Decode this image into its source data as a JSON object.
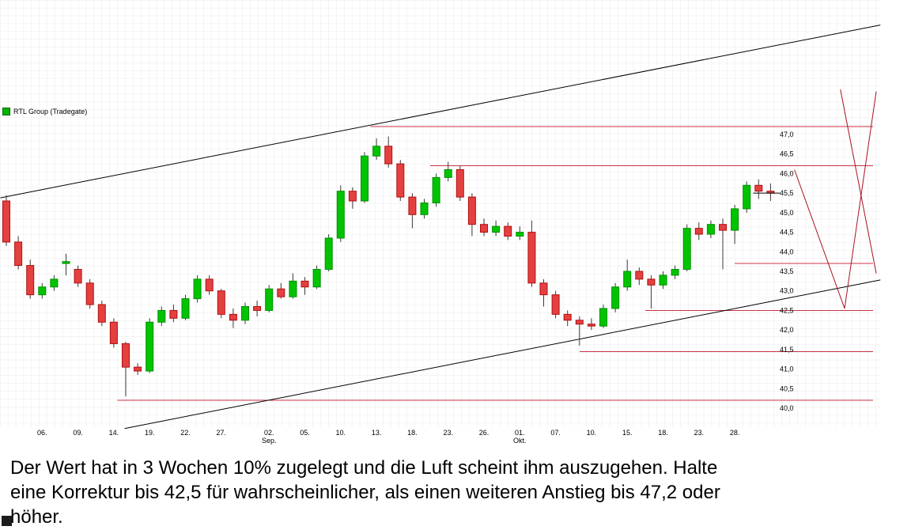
{
  "legend": {
    "label": "RTL Group (Tradegate)",
    "marker_color": "#00b400"
  },
  "commentary": {
    "lines": [
      "Der Wert hat in 3 Wochen 10% zugelegt und die Luft scheint ihm auszugehen. Halte",
      "eine Korrektur bis 42,5 für wahrscheinlicher, als einen weiteren Anstieg bis 47,2 oder",
      "höher."
    ],
    "text": "Der Wert hat in 3 Wochen 10% zugelegt und die Luft scheint ihm auszugehen. Halte eine Korrektur bis 42,5 für wahrscheinlicher, als einen weiteren Anstieg bis 47,2 oder höher."
  },
  "chart_data": {
    "type": "candlestick",
    "instrument": "RTL Group (Tradegate)",
    "title": "",
    "xlabel": "",
    "ylabel": "",
    "ylim": [
      40.0,
      47.0
    ],
    "grid": true,
    "y_axis_side": "right",
    "y_ticks": [
      "47,0",
      "46,5",
      "46,0",
      "45,5",
      "45,0",
      "44,5",
      "44,0",
      "43,5",
      "43,0",
      "42,5",
      "42,0",
      "41,5",
      "41,0",
      "40,5",
      "40,0"
    ],
    "x_ticks": [
      {
        "label": "06.",
        "index": 3
      },
      {
        "label": "09.",
        "index": 6
      },
      {
        "label": "14.",
        "index": 9
      },
      {
        "label": "19.",
        "index": 12
      },
      {
        "label": "22.",
        "index": 15
      },
      {
        "label": "27.",
        "index": 18
      },
      {
        "label": "02.",
        "index": 22,
        "month": "Sep."
      },
      {
        "label": "05.",
        "index": 25
      },
      {
        "label": "10.",
        "index": 28
      },
      {
        "label": "13.",
        "index": 31
      },
      {
        "label": "18.",
        "index": 34
      },
      {
        "label": "23.",
        "index": 37
      },
      {
        "label": "26.",
        "index": 40
      },
      {
        "label": "01.",
        "index": 43,
        "month": "Okt."
      },
      {
        "label": "07.",
        "index": 46
      },
      {
        "label": "10.",
        "index": 49
      },
      {
        "label": "15.",
        "index": 52
      },
      {
        "label": "18.",
        "index": 55
      },
      {
        "label": "23.",
        "index": 58
      },
      {
        "label": "28.",
        "index": 61
      }
    ],
    "candles": [
      {
        "d": "01.08.",
        "o": 45.3,
        "h": 45.45,
        "l": 44.15,
        "c": 44.25
      },
      {
        "d": "02.08.",
        "o": 44.25,
        "h": 44.4,
        "l": 43.55,
        "c": 43.65
      },
      {
        "d": "05.08.",
        "o": 43.65,
        "h": 43.8,
        "l": 42.8,
        "c": 42.9
      },
      {
        "d": "06.08.",
        "o": 42.9,
        "h": 43.2,
        "l": 42.8,
        "c": 43.1
      },
      {
        "d": "07.08.",
        "o": 43.1,
        "h": 43.4,
        "l": 43.0,
        "c": 43.3
      },
      {
        "d": "08.08.",
        "o": 43.7,
        "h": 43.95,
        "l": 43.4,
        "c": 43.75
      },
      {
        "d": "09.08.",
        "o": 43.55,
        "h": 43.65,
        "l": 43.1,
        "c": 43.2
      },
      {
        "d": "12.08.",
        "o": 43.2,
        "h": 43.3,
        "l": 42.55,
        "c": 42.65
      },
      {
        "d": "13.08.",
        "o": 42.65,
        "h": 42.75,
        "l": 42.1,
        "c": 42.2
      },
      {
        "d": "14.08.",
        "o": 42.2,
        "h": 42.3,
        "l": 41.55,
        "c": 41.65
      },
      {
        "d": "15.08.",
        "o": 41.65,
        "h": 41.7,
        "l": 40.3,
        "c": 41.05
      },
      {
        "d": "16.08.",
        "o": 41.05,
        "h": 41.15,
        "l": 40.85,
        "c": 40.95
      },
      {
        "d": "19.08.",
        "o": 40.95,
        "h": 42.3,
        "l": 40.9,
        "c": 42.2
      },
      {
        "d": "20.08.",
        "o": 42.2,
        "h": 42.6,
        "l": 42.1,
        "c": 42.5
      },
      {
        "d": "21.08.",
        "o": 42.5,
        "h": 42.65,
        "l": 42.2,
        "c": 42.3
      },
      {
        "d": "22.08.",
        "o": 42.3,
        "h": 42.9,
        "l": 42.25,
        "c": 42.8
      },
      {
        "d": "23.08.",
        "o": 42.8,
        "h": 43.4,
        "l": 42.7,
        "c": 43.3
      },
      {
        "d": "26.08.",
        "o": 43.3,
        "h": 43.4,
        "l": 42.9,
        "c": 43.0
      },
      {
        "d": "27.08.",
        "o": 43.0,
        "h": 43.05,
        "l": 42.3,
        "c": 42.4
      },
      {
        "d": "28.08.",
        "o": 42.4,
        "h": 42.55,
        "l": 42.05,
        "c": 42.25
      },
      {
        "d": "29.08.",
        "o": 42.25,
        "h": 42.7,
        "l": 42.15,
        "c": 42.6
      },
      {
        "d": "30.08.",
        "o": 42.6,
        "h": 42.75,
        "l": 42.35,
        "c": 42.5
      },
      {
        "d": "02.09.",
        "o": 42.5,
        "h": 43.15,
        "l": 42.45,
        "c": 43.05
      },
      {
        "d": "03.09.",
        "o": 43.05,
        "h": 43.2,
        "l": 42.8,
        "c": 42.85
      },
      {
        "d": "04.09.",
        "o": 42.85,
        "h": 43.45,
        "l": 42.8,
        "c": 43.25
      },
      {
        "d": "05.09.",
        "o": 43.25,
        "h": 43.35,
        "l": 42.9,
        "c": 43.1
      },
      {
        "d": "06.09.",
        "o": 43.1,
        "h": 43.65,
        "l": 43.05,
        "c": 43.55
      },
      {
        "d": "09.09.",
        "o": 43.55,
        "h": 44.45,
        "l": 43.5,
        "c": 44.35
      },
      {
        "d": "10.09.",
        "o": 44.35,
        "h": 45.7,
        "l": 44.25,
        "c": 45.55
      },
      {
        "d": "11.09.",
        "o": 45.55,
        "h": 45.65,
        "l": 45.1,
        "c": 45.3
      },
      {
        "d": "12.09.",
        "o": 45.3,
        "h": 46.55,
        "l": 45.25,
        "c": 46.45
      },
      {
        "d": "13.09.",
        "o": 46.45,
        "h": 46.9,
        "l": 46.35,
        "c": 46.7
      },
      {
        "d": "16.09.",
        "o": 46.7,
        "h": 46.95,
        "l": 46.15,
        "c": 46.25
      },
      {
        "d": "17.09.",
        "o": 46.25,
        "h": 46.35,
        "l": 45.3,
        "c": 45.4
      },
      {
        "d": "18.09.",
        "o": 45.4,
        "h": 45.5,
        "l": 44.6,
        "c": 44.95
      },
      {
        "d": "19.09.",
        "o": 44.95,
        "h": 45.35,
        "l": 44.85,
        "c": 45.25
      },
      {
        "d": "20.09.",
        "o": 45.25,
        "h": 46.0,
        "l": 45.15,
        "c": 45.9
      },
      {
        "d": "23.09.",
        "o": 45.9,
        "h": 46.3,
        "l": 45.8,
        "c": 46.1
      },
      {
        "d": "24.09.",
        "o": 46.1,
        "h": 46.2,
        "l": 45.3,
        "c": 45.4
      },
      {
        "d": "25.09.",
        "o": 45.4,
        "h": 45.5,
        "l": 44.4,
        "c": 44.7
      },
      {
        "d": "26.09.",
        "o": 44.7,
        "h": 44.85,
        "l": 44.4,
        "c": 44.5
      },
      {
        "d": "27.09.",
        "o": 44.5,
        "h": 44.8,
        "l": 44.4,
        "c": 44.65
      },
      {
        "d": "30.09.",
        "o": 44.65,
        "h": 44.75,
        "l": 44.3,
        "c": 44.4
      },
      {
        "d": "01.10.",
        "o": 44.4,
        "h": 44.65,
        "l": 44.3,
        "c": 44.5
      },
      {
        "d": "02.10.",
        "o": 44.5,
        "h": 44.8,
        "l": 43.1,
        "c": 43.2
      },
      {
        "d": "04.10.",
        "o": 43.2,
        "h": 43.3,
        "l": 42.6,
        "c": 42.9
      },
      {
        "d": "07.10.",
        "o": 42.9,
        "h": 43.0,
        "l": 42.3,
        "c": 42.4
      },
      {
        "d": "08.10.",
        "o": 42.4,
        "h": 42.5,
        "l": 42.1,
        "c": 42.25
      },
      {
        "d": "09.10.",
        "o": 42.25,
        "h": 42.35,
        "l": 41.6,
        "c": 42.15
      },
      {
        "d": "10.10.",
        "o": 42.15,
        "h": 42.3,
        "l": 42.0,
        "c": 42.1
      },
      {
        "d": "11.10.",
        "o": 42.1,
        "h": 42.65,
        "l": 42.05,
        "c": 42.55
      },
      {
        "d": "14.10.",
        "o": 42.55,
        "h": 43.2,
        "l": 42.45,
        "c": 43.1
      },
      {
        "d": "15.10.",
        "o": 43.1,
        "h": 43.8,
        "l": 43.0,
        "c": 43.5
      },
      {
        "d": "16.10.",
        "o": 43.5,
        "h": 43.6,
        "l": 43.15,
        "c": 43.3
      },
      {
        "d": "17.10.",
        "o": 43.3,
        "h": 43.4,
        "l": 42.55,
        "c": 43.15
      },
      {
        "d": "18.10.",
        "o": 43.15,
        "h": 43.5,
        "l": 43.05,
        "c": 43.4
      },
      {
        "d": "21.10.",
        "o": 43.4,
        "h": 43.65,
        "l": 43.3,
        "c": 43.55
      },
      {
        "d": "22.10.",
        "o": 43.55,
        "h": 44.7,
        "l": 43.5,
        "c": 44.6
      },
      {
        "d": "23.10.",
        "o": 44.6,
        "h": 44.75,
        "l": 44.3,
        "c": 44.45
      },
      {
        "d": "24.10.",
        "o": 44.45,
        "h": 44.8,
        "l": 44.35,
        "c": 44.7
      },
      {
        "d": "25.10.",
        "o": 44.7,
        "h": 44.85,
        "l": 43.55,
        "c": 44.55
      },
      {
        "d": "28.10.",
        "o": 44.55,
        "h": 45.2,
        "l": 44.2,
        "c": 45.1
      },
      {
        "d": "29.10.",
        "o": 45.1,
        "h": 45.8,
        "l": 45.0,
        "c": 45.7
      },
      {
        "d": "30.10.",
        "o": 45.7,
        "h": 45.85,
        "l": 45.35,
        "c": 45.55
      },
      {
        "d": "31.10.",
        "o": 45.55,
        "h": 45.75,
        "l": 45.3,
        "c": 45.5
      }
    ],
    "support_resistance": [
      {
        "price": 47.2,
        "start_index": 30.5
      },
      {
        "price": 46.2,
        "start_index": 35.5
      },
      {
        "price": 43.7,
        "start_index": 61.0
      },
      {
        "price": 42.5,
        "start_index": 53.5
      },
      {
        "price": 41.45,
        "start_index": 48.0
      },
      {
        "price": 40.2,
        "start_index": 9.3
      }
    ],
    "trend_channel": [
      {
        "i1": -0.5,
        "p1": 45.38,
        "i2": 73.2,
        "p2": 49.8
      },
      {
        "i1": 9.9,
        "p1": 39.48,
        "i2": 73.2,
        "p2": 43.28
      }
    ],
    "projection_path": [
      {
        "i1": 66.0,
        "p1": 46.1,
        "i2": 70.2,
        "p2": 42.55
      },
      {
        "i1": 70.2,
        "p1": 42.55,
        "i2": 72.85,
        "p2": 48.1
      },
      {
        "i1": 69.85,
        "p1": 48.15,
        "i2": 72.85,
        "p2": 43.45
      }
    ],
    "last_price": 45.5,
    "colors": {
      "up": "#00c400",
      "up_border": "#008f00",
      "down": "#e54040",
      "down_border": "#b01010",
      "wick": "#3a3a3a",
      "level_line": "#cc3344",
      "projection_line": "#aa1122",
      "channel_line": "#000000",
      "grid": "#eaeaea"
    }
  }
}
